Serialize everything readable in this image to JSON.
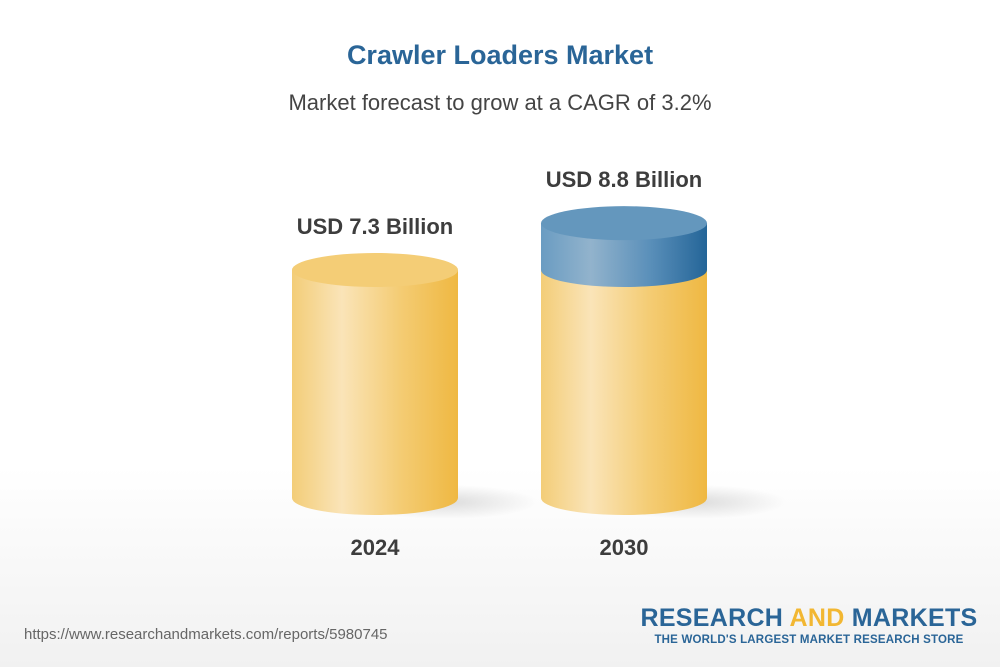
{
  "header": {
    "title": "Crawler Loaders Market",
    "subtitle": "Market forecast to grow at a CAGR of 3.2%"
  },
  "chart_data": {
    "type": "bar",
    "style": "3d-cylinder",
    "categories": [
      "2024",
      "2030"
    ],
    "values": [
      7.3,
      8.8
    ],
    "data_labels": [
      "USD 7.3 Billion",
      "USD 8.8 Billion"
    ],
    "unit": "USD Billion",
    "colors": {
      "base": "#f2b732",
      "growth": "#2a6597"
    }
  },
  "footer": {
    "url": "https://www.researchandmarkets.com/reports/5980745",
    "logo_part1": "RESEARCH ",
    "logo_part2": "AND",
    "logo_part3": " MARKETS",
    "tagline": "THE WORLD'S LARGEST MARKET RESEARCH STORE"
  }
}
